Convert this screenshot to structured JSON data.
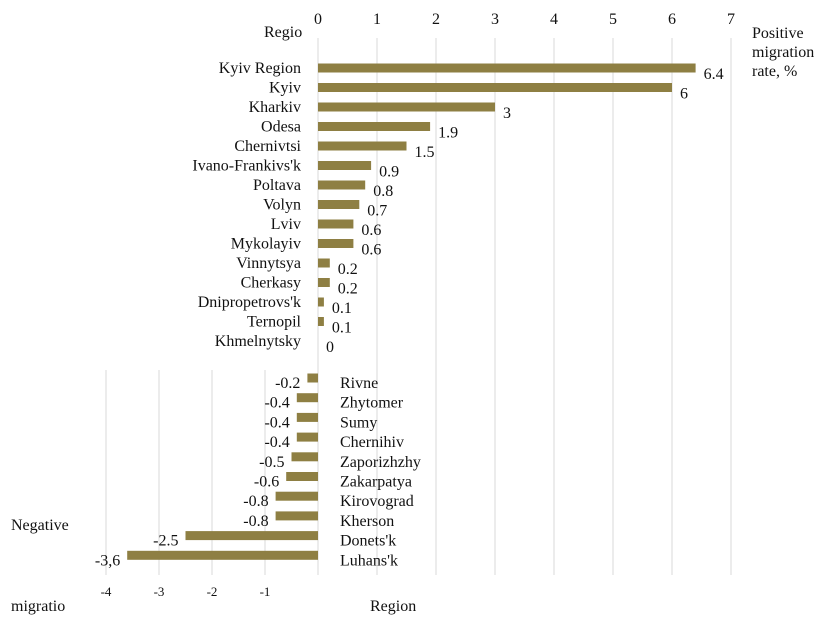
{
  "chart_data": {
    "type": "bar",
    "orientation": "horizontal",
    "colors": {
      "bar": "#8E7F43",
      "grid": "#d9d9d9"
    },
    "top_axis": {
      "ticks": [
        0,
        1,
        2,
        3,
        4,
        5,
        6,
        7
      ],
      "label_start": "Regio"
    },
    "bottom_axis": {
      "ticks": [
        -4,
        -3,
        -2,
        -1
      ],
      "tick_labels": [
        "-4",
        "-3",
        "-2",
        "-1"
      ],
      "label_start": "migratio",
      "label_center": "Region"
    },
    "positive_legend": [
      "Positive",
      "migration",
      "rate, %"
    ],
    "negative_legend": "Negative",
    "positive": [
      {
        "region": "Kyiv Region",
        "value": 6.4,
        "label": "6.4"
      },
      {
        "region": "Kyiv",
        "value": 6,
        "label": "6"
      },
      {
        "region": "Kharkiv",
        "value": 3,
        "label": "3"
      },
      {
        "region": "Odesa",
        "value": 1.9,
        "label": "1.9"
      },
      {
        "region": "Chernivtsi",
        "value": 1.5,
        "label": "1.5"
      },
      {
        "region": "Ivano-Frankivs'k",
        "value": 0.9,
        "label": "0.9"
      },
      {
        "region": "Poltava",
        "value": 0.8,
        "label": "0.8"
      },
      {
        "region": "Volyn",
        "value": 0.7,
        "label": "0.7"
      },
      {
        "region": "Lviv",
        "value": 0.6,
        "label": "0.6"
      },
      {
        "region": "Mykolayiv",
        "value": 0.6,
        "label": "0.6"
      },
      {
        "region": "Vinnytsya",
        "value": 0.2,
        "label": "0.2"
      },
      {
        "region": "Cherkasy",
        "value": 0.2,
        "label": "0.2"
      },
      {
        "region": "Dnipropetrovs'k",
        "value": 0.1,
        "label": "0.1"
      },
      {
        "region": "Ternopil",
        "value": 0.1,
        "label": "0.1"
      },
      {
        "region": "Khmelnytsky",
        "value": 0,
        "label": "0"
      }
    ],
    "negative": [
      {
        "region": "Rivne",
        "value": -0.2,
        "label": "-0.2"
      },
      {
        "region": "Zhytomer",
        "value": -0.4,
        "label": "-0.4"
      },
      {
        "region": "Sumy",
        "value": -0.4,
        "label": "-0.4"
      },
      {
        "region": "Chernihiv",
        "value": -0.4,
        "label": "-0.4"
      },
      {
        "region": "Zaporizhzhy",
        "value": -0.5,
        "label": "-0.5"
      },
      {
        "region": "Zakarpatya",
        "value": -0.6,
        "label": "-0.6"
      },
      {
        "region": "Kirovograd",
        "value": -0.8,
        "label": "-0.8"
      },
      {
        "region": "Kherson",
        "value": -0.8,
        "label": "-0.8"
      },
      {
        "region": "Donets'k",
        "value": -2.5,
        "label": "-2.5"
      },
      {
        "region": "Luhans'k",
        "value": -3.6,
        "label": "-3,6"
      }
    ]
  }
}
